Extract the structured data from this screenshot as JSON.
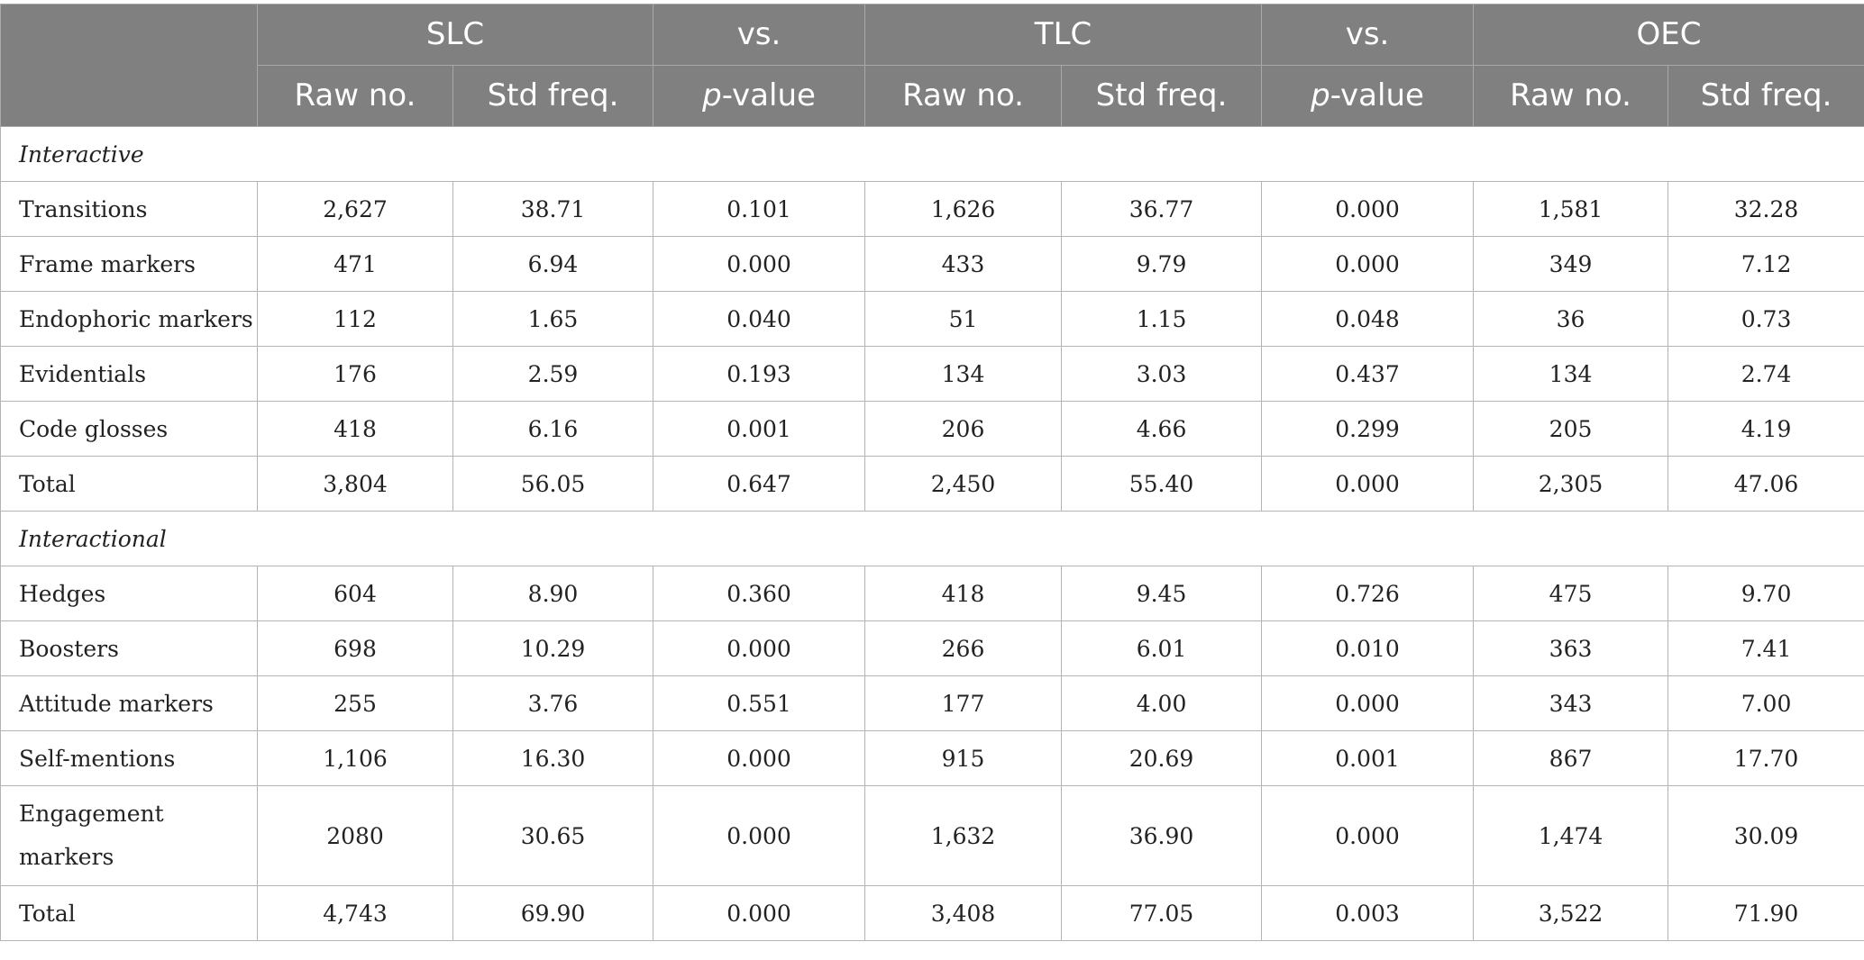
{
  "header": {
    "groups": [
      {
        "label": "SLC"
      },
      {
        "label": "vs."
      },
      {
        "label": "TLC"
      },
      {
        "label": "vs."
      },
      {
        "label": "OEC"
      }
    ],
    "sub": {
      "raw": "Raw no.",
      "std": "Std freq.",
      "p_italic": "p",
      "p_rest": "-value"
    }
  },
  "sections": [
    {
      "title": "Interactive",
      "rows": [
        {
          "label": "Transitions",
          "cells": [
            "2,627",
            "38.71",
            "0.101",
            "1,626",
            "36.77",
            "0.000",
            "1,581",
            "32.28"
          ]
        },
        {
          "label": "Frame markers",
          "cells": [
            "471",
            "6.94",
            "0.000",
            "433",
            "9.79",
            "0.000",
            "349",
            "7.12"
          ]
        },
        {
          "label": "Endophoric markers",
          "cells": [
            "112",
            "1.65",
            "0.040",
            "51",
            "1.15",
            "0.048",
            "36",
            "0.73"
          ]
        },
        {
          "label": "Evidentials",
          "cells": [
            "176",
            "2.59",
            "0.193",
            "134",
            "3.03",
            "0.437",
            "134",
            "2.74"
          ]
        },
        {
          "label": "Code glosses",
          "cells": [
            "418",
            "6.16",
            "0.001",
            "206",
            "4.66",
            "0.299",
            "205",
            "4.19"
          ]
        },
        {
          "label": "Total",
          "cells": [
            "3,804",
            "56.05",
            "0.647",
            "2,450",
            "55.40",
            "0.000",
            "2,305",
            "47.06"
          ]
        }
      ]
    },
    {
      "title": "Interactional",
      "rows": [
        {
          "label": "Hedges",
          "cells": [
            "604",
            "8.90",
            "0.360",
            "418",
            "9.45",
            "0.726",
            "475",
            "9.70"
          ]
        },
        {
          "label": "Boosters",
          "cells": [
            "698",
            "10.29",
            "0.000",
            "266",
            "6.01",
            "0.010",
            "363",
            "7.41"
          ]
        },
        {
          "label": "Attitude markers",
          "cells": [
            "255",
            "3.76",
            "0.551",
            "177",
            "4.00",
            "0.000",
            "343",
            "7.00"
          ]
        },
        {
          "label": "Self-mentions",
          "cells": [
            "1,106",
            "16.30",
            "0.000",
            "915",
            "20.69",
            "0.001",
            "867",
            "17.70"
          ]
        },
        {
          "label": "Engagement markers",
          "cells": [
            "2080",
            "30.65",
            "0.000",
            "1,632",
            "36.90",
            "0.000",
            "1,474",
            "30.09"
          ]
        },
        {
          "label": "Total",
          "cells": [
            "4,743",
            "69.90",
            "0.000",
            "3,408",
            "77.05",
            "0.003",
            "3,522",
            "71.90"
          ]
        }
      ]
    }
  ]
}
